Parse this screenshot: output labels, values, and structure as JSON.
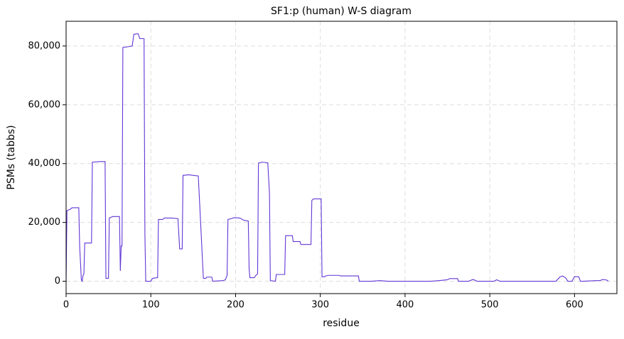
{
  "chart_data": {
    "type": "line",
    "title": "SF1:p (human) W-S diagram",
    "x_label": "residue",
    "y_label": "PSMs (tabbs)",
    "x": [
      0,
      1,
      5,
      7,
      15,
      16,
      18,
      19,
      20,
      21,
      22,
      30,
      31,
      40,
      46,
      47,
      50,
      51,
      55,
      63,
      64,
      65,
      66,
      67,
      72,
      78,
      80,
      85,
      87,
      92,
      93,
      94,
      100,
      102,
      108,
      109,
      114,
      116,
      124,
      132,
      134,
      137,
      138,
      145,
      150,
      156,
      162,
      165,
      166,
      172,
      173,
      185,
      188,
      190,
      191,
      195,
      198,
      205,
      210,
      215,
      216,
      217,
      222,
      224,
      226,
      227,
      231,
      238,
      240,
      241,
      247,
      248,
      252,
      258,
      259,
      267,
      268,
      276,
      277,
      289,
      290,
      292,
      301,
      302,
      305,
      306,
      310,
      322,
      324,
      345,
      346,
      360,
      370,
      380,
      430,
      440,
      450,
      453,
      462,
      463,
      475,
      480,
      483,
      485,
      505,
      508,
      512,
      578,
      583,
      586,
      590,
      592,
      597,
      600,
      605,
      607,
      610,
      625,
      630,
      633,
      638,
      640
    ],
    "series": [
      {
        "name": "PSMs",
        "color": "#6236d6",
        "values": [
          0,
          24000,
          24500,
          25000,
          25000,
          12000,
          500,
          0,
          2000,
          2500,
          13000,
          13000,
          40500,
          40700,
          40700,
          1000,
          1000,
          21500,
          22000,
          22000,
          3500,
          12000,
          12000,
          79500,
          79700,
          80000,
          84000,
          84200,
          82500,
          82500,
          16000,
          0,
          0,
          1000,
          1200,
          21000,
          21000,
          21500,
          21500,
          21300,
          11000,
          11000,
          36000,
          36200,
          36000,
          35800,
          1000,
          1000,
          1400,
          1400,
          0,
          200,
          500,
          2000,
          21000,
          21300,
          21600,
          21500,
          20700,
          20500,
          4000,
          1200,
          1200,
          2000,
          2500,
          40200,
          40500,
          40300,
          30000,
          200,
          0,
          2300,
          2300,
          2300,
          15500,
          15500,
          13500,
          13500,
          12500,
          12500,
          27500,
          28000,
          28000,
          1500,
          1500,
          1800,
          2000,
          2000,
          1800,
          1800,
          0,
          0,
          200,
          0,
          0,
          200,
          500,
          900,
          900,
          0,
          0,
          600,
          300,
          0,
          0,
          500,
          0,
          0,
          1500,
          1800,
          1000,
          0,
          0,
          1600,
          1500,
          0,
          0,
          200,
          200,
          600,
          400,
          0
        ]
      }
    ],
    "xlim": [
      0,
      650
    ],
    "xticks": [
      0,
      100,
      200,
      300,
      400,
      500,
      600
    ],
    "ylim": [
      -4210,
      88410
    ],
    "yticks": [
      0,
      {
        "value": 20000,
        "label": "20,000"
      },
      {
        "value": 40000,
        "label": "40,000"
      },
      {
        "value": 60000,
        "label": "60,000"
      },
      {
        "value": 80000,
        "label": "80,000"
      }
    ],
    "grid": true
  }
}
